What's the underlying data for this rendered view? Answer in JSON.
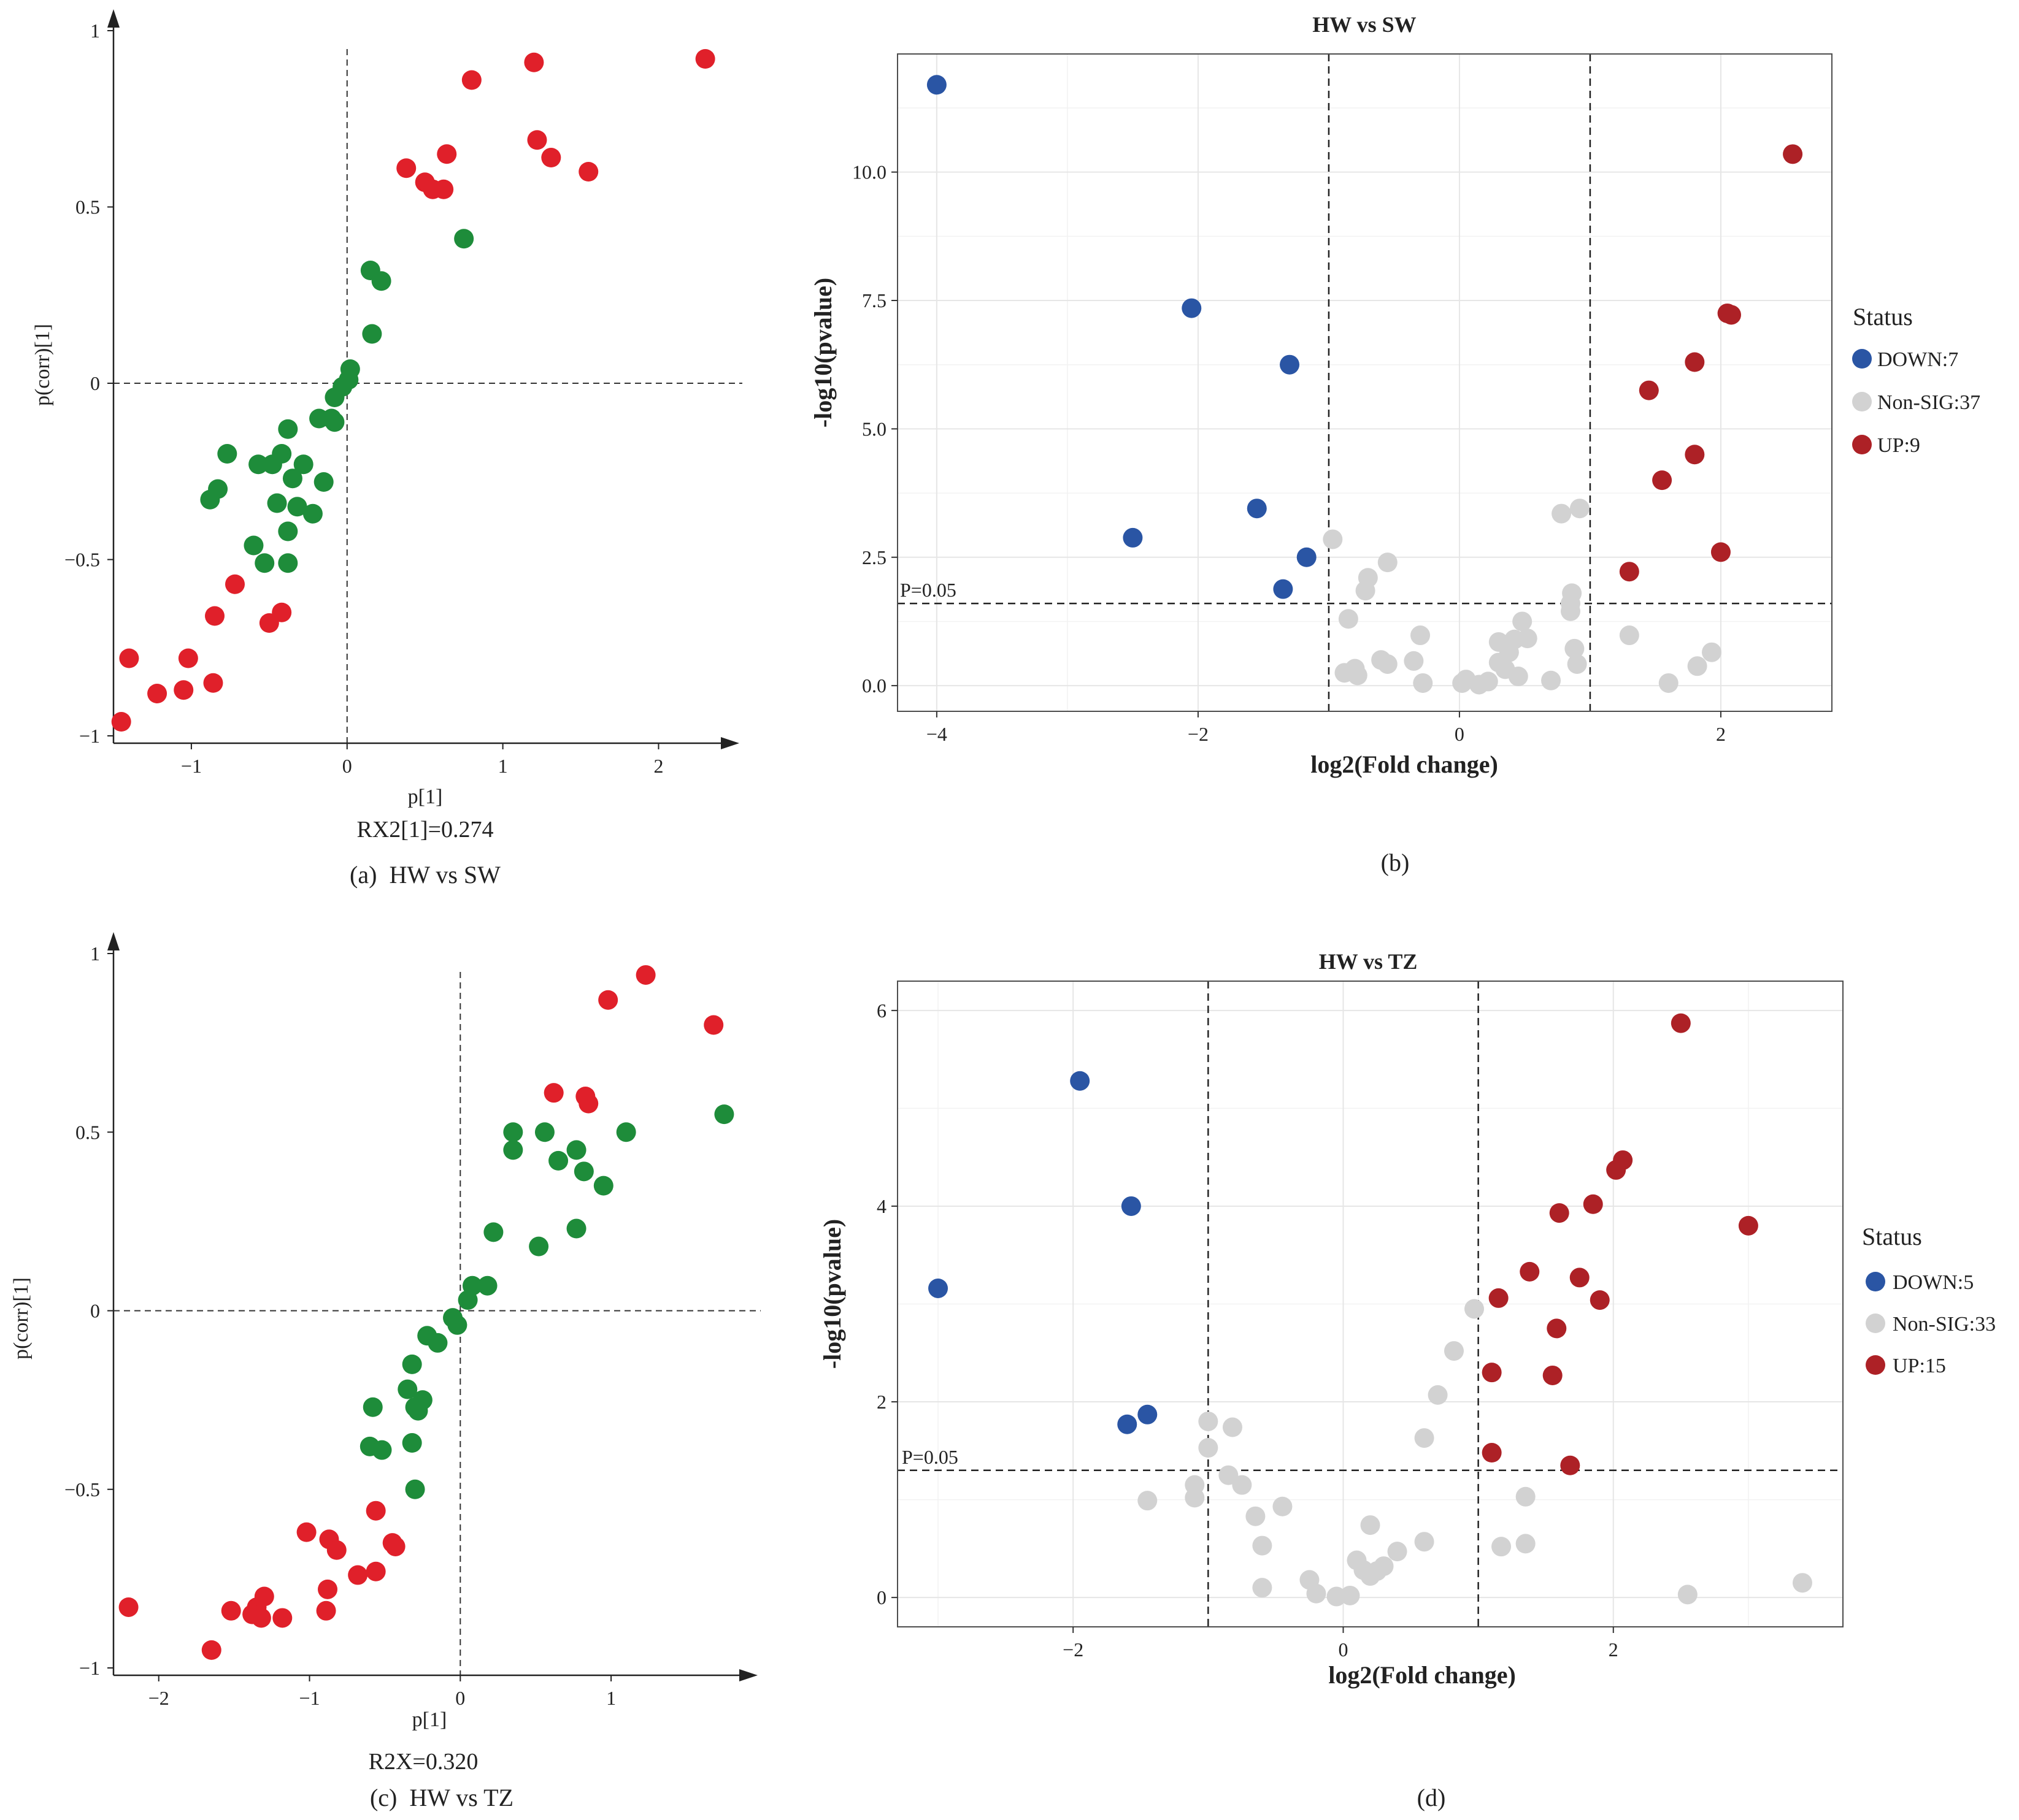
{
  "colors": {
    "splot_red": "#e0202a",
    "splot_green": "#1e8c3a",
    "down": "#2a55a4",
    "nonsig": "#d2d2d2",
    "up": "#ad2126",
    "panel_border": "#4d4d4d",
    "grid": "#ebebeb"
  },
  "chart_data": [
    {
      "id": "a",
      "type": "scatter",
      "title": "",
      "xlabel": "p[1]",
      "ylabel": "p(corr)[1]",
      "subtitle": "RX2[1]=0.274",
      "caption": "(a)  HW vs SW",
      "xlim": [
        -1.5,
        2.4
      ],
      "ylim": [
        -1,
        1
      ],
      "xticks": [
        -1,
        0,
        1,
        2
      ],
      "yticks": [
        -1,
        -0.5,
        0,
        0.5,
        1
      ],
      "xtick_labels": [
        "−1",
        "0",
        "1",
        "2"
      ],
      "ytick_labels": [
        "−1",
        "−0.5",
        "0",
        "0.5",
        "1"
      ],
      "series": [
        {
          "name": "red",
          "color": "#e0202a",
          "points": [
            [
              2.3,
              0.92
            ],
            [
              1.2,
              0.91
            ],
            [
              0.8,
              0.86
            ],
            [
              1.22,
              0.69
            ],
            [
              1.31,
              0.64
            ],
            [
              1.55,
              0.6
            ],
            [
              0.38,
              0.61
            ],
            [
              0.5,
              0.57
            ],
            [
              0.64,
              0.65
            ],
            [
              0.55,
              0.55
            ],
            [
              0.62,
              0.55
            ],
            [
              -0.72,
              -0.57
            ],
            [
              -0.85,
              -0.66
            ],
            [
              -0.5,
              -0.68
            ],
            [
              -0.42,
              -0.65
            ],
            [
              -1.4,
              -0.78
            ],
            [
              -1.02,
              -0.78
            ],
            [
              -1.05,
              -0.87
            ],
            [
              -1.22,
              -0.88
            ],
            [
              -0.86,
              -0.85
            ],
            [
              -1.45,
              -0.96
            ]
          ]
        },
        {
          "name": "green",
          "color": "#1e8c3a",
          "points": [
            [
              0.75,
              0.41
            ],
            [
              0.15,
              0.32
            ],
            [
              0.22,
              0.29
            ],
            [
              0.16,
              0.14
            ],
            [
              0.02,
              0.04
            ],
            [
              0.01,
              0.01
            ],
            [
              -0.03,
              -0.01
            ],
            [
              -0.08,
              -0.04
            ],
            [
              -0.1,
              -0.1
            ],
            [
              -0.18,
              -0.1
            ],
            [
              -0.08,
              -0.11
            ],
            [
              -0.38,
              -0.13
            ],
            [
              -0.77,
              -0.2
            ],
            [
              -0.42,
              -0.2
            ],
            [
              -0.48,
              -0.23
            ],
            [
              -0.57,
              -0.23
            ],
            [
              -0.28,
              -0.23
            ],
            [
              -0.35,
              -0.27
            ],
            [
              -0.83,
              -0.3
            ],
            [
              -0.88,
              -0.33
            ],
            [
              -0.45,
              -0.34
            ],
            [
              -0.32,
              -0.35
            ],
            [
              -0.15,
              -0.28
            ],
            [
              -0.22,
              -0.37
            ],
            [
              -0.38,
              -0.42
            ],
            [
              -0.6,
              -0.46
            ],
            [
              -0.53,
              -0.51
            ],
            [
              -0.38,
              -0.51
            ]
          ]
        }
      ],
      "annotations": []
    },
    {
      "id": "b",
      "type": "scatter",
      "title": "HW vs SW",
      "xlabel": "log2(Fold change)",
      "ylabel": "-log10(pvalue)",
      "caption": "(b)",
      "xlim": [
        -4.3,
        2.85
      ],
      "ylim": [
        -0.5,
        12.3
      ],
      "xticks": [
        -4,
        -2,
        0,
        2
      ],
      "yticks": [
        0,
        2.5,
        5,
        7.5,
        10
      ],
      "xtick_labels": [
        "−4",
        "−2",
        "0",
        "2"
      ],
      "ytick_labels": [
        "0.0",
        "2.5",
        "5.0",
        "7.5",
        "10.0"
      ],
      "xgrid_minor": [
        -3,
        -1,
        1
      ],
      "ygrid_minor": [
        1.25,
        3.75,
        6.25,
        8.75,
        11.25
      ],
      "vlines": [
        -1,
        1
      ],
      "hline": 1.6,
      "hline_label": "P=0.05",
      "legend_title": "Status",
      "legend_position": "right",
      "series": [
        {
          "name": "DOWN:7",
          "color": "#2a55a4",
          "points": [
            [
              -4.0,
              11.7
            ],
            [
              -2.05,
              7.35
            ],
            [
              -1.3,
              6.25
            ],
            [
              -1.55,
              3.45
            ],
            [
              -2.5,
              2.88
            ],
            [
              -1.17,
              2.5
            ],
            [
              -1.35,
              1.88
            ]
          ]
        },
        {
          "name": "Non-SIG:37",
          "color": "#d2d2d2",
          "points": [
            [
              -0.97,
              2.85
            ],
            [
              -0.55,
              2.4
            ],
            [
              -0.7,
              2.1
            ],
            [
              -0.72,
              1.85
            ],
            [
              -0.85,
              1.3
            ],
            [
              -0.3,
              0.98
            ],
            [
              -0.35,
              0.48
            ],
            [
              -0.55,
              0.42
            ],
            [
              -0.8,
              0.33
            ],
            [
              -0.88,
              0.25
            ],
            [
              -0.78,
              0.2
            ],
            [
              -0.28,
              0.05
            ],
            [
              0.02,
              0.05
            ],
            [
              0.05,
              0.12
            ],
            [
              0.22,
              0.08
            ],
            [
              0.3,
              0.85
            ],
            [
              0.42,
              0.9
            ],
            [
              0.48,
              1.25
            ],
            [
              0.52,
              0.92
            ],
            [
              0.3,
              0.45
            ],
            [
              0.35,
              0.32
            ],
            [
              0.45,
              0.18
            ],
            [
              0.78,
              3.35
            ],
            [
              0.92,
              3.45
            ],
            [
              0.86,
              1.8
            ],
            [
              0.85,
              1.6
            ],
            [
              0.85,
              1.45
            ],
            [
              0.88,
              0.72
            ],
            [
              0.9,
              0.42
            ],
            [
              1.3,
              0.98
            ],
            [
              1.6,
              0.05
            ],
            [
              1.82,
              0.38
            ],
            [
              1.93,
              0.65
            ],
            [
              0.38,
              0.65
            ],
            [
              0.15,
              0.02
            ],
            [
              -0.6,
              0.5
            ],
            [
              0.7,
              0.1
            ]
          ]
        },
        {
          "name": "UP:9",
          "color": "#ad2126",
          "points": [
            [
              2.55,
              10.35
            ],
            [
              2.05,
              7.25
            ],
            [
              1.8,
              6.3
            ],
            [
              1.45,
              5.75
            ],
            [
              1.8,
              4.5
            ],
            [
              1.55,
              4.0
            ],
            [
              2.0,
              2.6
            ],
            [
              1.3,
              2.22
            ],
            [
              2.08,
              7.22
            ]
          ]
        }
      ]
    },
    {
      "id": "c",
      "type": "scatter",
      "title": "",
      "xlabel": "p[1]",
      "ylabel": "p(corr)[1]",
      "subtitle": "R2X=0.320",
      "caption": "(c)  HW vs TZ",
      "xlim": [
        -2.3,
        1.85
      ],
      "ylim": [
        -1,
        1
      ],
      "xticks": [
        -2,
        -1,
        0,
        1
      ],
      "yticks": [
        -1,
        -0.5,
        0,
        0.5,
        1
      ],
      "xtick_labels": [
        "−2",
        "−1",
        "0",
        "1"
      ],
      "ytick_labels": [
        "−1",
        "−0.5",
        "0",
        "0.5",
        "1"
      ],
      "series": [
        {
          "name": "red",
          "color": "#e0202a",
          "points": [
            [
              1.23,
              0.94
            ],
            [
              0.98,
              0.87
            ],
            [
              1.68,
              0.8
            ],
            [
              0.62,
              0.61
            ],
            [
              0.83,
              0.6
            ],
            [
              0.85,
              0.58
            ],
            [
              -2.2,
              -0.83
            ],
            [
              -1.02,
              -0.62
            ],
            [
              -0.87,
              -0.64
            ],
            [
              -0.82,
              -0.67
            ],
            [
              -0.56,
              -0.56
            ],
            [
              -0.45,
              -0.65
            ],
            [
              -0.43,
              -0.66
            ],
            [
              -0.56,
              -0.73
            ],
            [
              -0.68,
              -0.74
            ],
            [
              -0.88,
              -0.78
            ],
            [
              -1.3,
              -0.8
            ],
            [
              -1.35,
              -0.83
            ],
            [
              -1.52,
              -0.84
            ],
            [
              -1.38,
              -0.85
            ],
            [
              -1.18,
              -0.86
            ],
            [
              -1.32,
              -0.86
            ],
            [
              -0.89,
              -0.84
            ],
            [
              -1.65,
              -0.95
            ]
          ]
        },
        {
          "name": "green",
          "color": "#1e8c3a",
          "points": [
            [
              1.75,
              0.55
            ],
            [
              0.35,
              0.5
            ],
            [
              0.56,
              0.5
            ],
            [
              1.1,
              0.5
            ],
            [
              0.77,
              0.45
            ],
            [
              0.65,
              0.42
            ],
            [
              0.82,
              0.39
            ],
            [
              0.95,
              0.35
            ],
            [
              0.35,
              0.45
            ],
            [
              0.22,
              0.22
            ],
            [
              0.77,
              0.23
            ],
            [
              0.52,
              0.18
            ],
            [
              0.08,
              0.07
            ],
            [
              0.18,
              0.07
            ],
            [
              0.05,
              0.03
            ],
            [
              -0.05,
              -0.02
            ],
            [
              -0.02,
              -0.04
            ],
            [
              -0.22,
              -0.07
            ],
            [
              -0.15,
              -0.09
            ],
            [
              -0.32,
              -0.15
            ],
            [
              -0.35,
              -0.22
            ],
            [
              -0.25,
              -0.25
            ],
            [
              -0.3,
              -0.27
            ],
            [
              -0.58,
              -0.27
            ],
            [
              -0.28,
              -0.28
            ],
            [
              -0.6,
              -0.38
            ],
            [
              -0.52,
              -0.39
            ],
            [
              -0.32,
              -0.37
            ],
            [
              -0.3,
              -0.5
            ]
          ]
        }
      ],
      "annotations": []
    },
    {
      "id": "d",
      "type": "scatter",
      "title": "HW vs TZ",
      "xlabel": "log2(Fold change)",
      "ylabel": "-log10(pvalue)",
      "caption": "(d)",
      "xlim": [
        -3.3,
        3.7
      ],
      "ylim": [
        -0.3,
        6.3
      ],
      "xticks": [
        -2,
        0,
        2
      ],
      "yticks": [
        0,
        2,
        4,
        6
      ],
      "xtick_labels": [
        "−2",
        "0",
        "2"
      ],
      "ytick_labels": [
        "0",
        "2",
        "4",
        "6"
      ],
      "xgrid_minor": [
        -3,
        -1,
        1,
        3
      ],
      "ygrid_minor": [
        1,
        3,
        5
      ],
      "vlines": [
        -1,
        1
      ],
      "hline": 1.3,
      "hline_label": "P=0.05",
      "legend_title": "Status",
      "legend_position": "right",
      "series": [
        {
          "name": "DOWN:5",
          "color": "#2a55a4",
          "points": [
            [
              -1.95,
              5.28
            ],
            [
              -1.57,
              4.0
            ],
            [
              -3.0,
              3.16
            ],
            [
              -1.45,
              1.87
            ],
            [
              -1.6,
              1.77
            ]
          ]
        },
        {
          "name": "Non-SIG:33",
          "color": "#d2d2d2",
          "points": [
            [
              -1.0,
              1.8
            ],
            [
              -0.82,
              1.74
            ],
            [
              -1.0,
              1.53
            ],
            [
              -0.85,
              1.25
            ],
            [
              -0.75,
              1.15
            ],
            [
              -1.1,
              1.15
            ],
            [
              -1.1,
              1.02
            ],
            [
              -1.45,
              0.99
            ],
            [
              -0.45,
              0.93
            ],
            [
              -0.65,
              0.83
            ],
            [
              -0.6,
              0.53
            ],
            [
              -0.6,
              0.1
            ],
            [
              -0.25,
              0.18
            ],
            [
              -0.2,
              0.04
            ],
            [
              -0.05,
              0.01
            ],
            [
              0.05,
              0.02
            ],
            [
              0.1,
              0.38
            ],
            [
              0.2,
              0.74
            ],
            [
              0.15,
              0.28
            ],
            [
              0.2,
              0.22
            ],
            [
              0.25,
              0.27
            ],
            [
              0.4,
              0.47
            ],
            [
              0.6,
              0.57
            ],
            [
              0.6,
              1.63
            ],
            [
              0.7,
              2.07
            ],
            [
              0.82,
              2.52
            ],
            [
              0.97,
              2.95
            ],
            [
              1.35,
              1.03
            ],
            [
              1.35,
              0.55
            ],
            [
              1.17,
              0.52
            ],
            [
              2.55,
              0.03
            ],
            [
              3.4,
              0.15
            ],
            [
              0.3,
              0.32
            ]
          ]
        },
        {
          "name": "UP:15",
          "color": "#ad2126",
          "points": [
            [
              2.5,
              5.87
            ],
            [
              2.07,
              4.47
            ],
            [
              2.02,
              4.37
            ],
            [
              1.85,
              4.02
            ],
            [
              1.6,
              3.93
            ],
            [
              3.0,
              3.8
            ],
            [
              1.38,
              3.33
            ],
            [
              1.75,
              3.27
            ],
            [
              1.15,
              3.06
            ],
            [
              1.9,
              3.04
            ],
            [
              1.58,
              2.75
            ],
            [
              1.1,
              2.3
            ],
            [
              1.55,
              2.27
            ],
            [
              1.1,
              1.48
            ],
            [
              1.68,
              1.35
            ]
          ]
        }
      ]
    }
  ]
}
